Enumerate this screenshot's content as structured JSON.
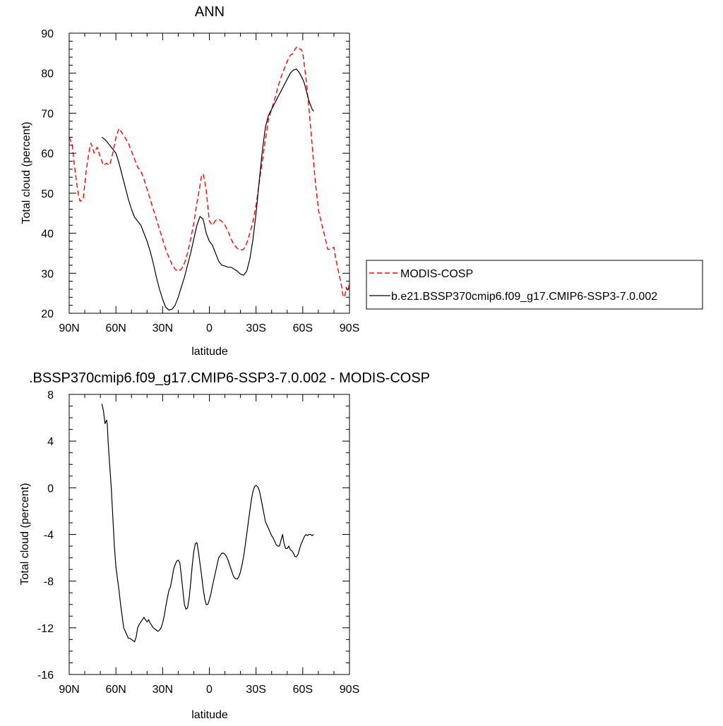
{
  "colors": {
    "model": "#000000",
    "obs": "#ff0000"
  },
  "chart_data": [
    {
      "type": "line",
      "title": "ANN",
      "xlabel": "latitude",
      "ylabel": "Total cloud (percent)",
      "xlim": [
        90,
        -90
      ],
      "ylim": [
        20,
        90
      ],
      "x_ticks": [
        90,
        60,
        30,
        0,
        -30,
        -60,
        -90
      ],
      "x_tick_labels": [
        "90N",
        "60N",
        "30N",
        "0",
        "30S",
        "60S",
        "90S"
      ],
      "y_ticks": [
        20,
        30,
        40,
        50,
        60,
        70,
        80,
        90
      ],
      "y_tick_labels": [
        "20",
        "30",
        "40",
        "50",
        "60",
        "70",
        "80",
        "90"
      ],
      "y_minor_step": 2,
      "x_minor_step": 10,
      "grid": false,
      "legend_position": "right",
      "series": [
        {
          "name": "MODIS-COSP",
          "style": "dashed",
          "color": "#ff0000",
          "x": [
            90,
            88,
            87,
            86,
            85,
            84,
            83,
            81,
            79,
            77,
            76,
            74,
            72,
            70,
            68,
            66,
            64,
            62,
            60,
            58,
            56,
            54,
            52,
            50,
            48,
            46,
            44,
            42,
            40,
            38,
            36,
            34,
            32,
            30,
            28,
            26,
            24,
            22,
            20,
            18,
            16,
            14,
            12,
            10,
            8,
            6,
            5,
            4,
            3,
            2,
            0,
            -2,
            -4,
            -6,
            -8,
            -10,
            -12,
            -14,
            -16,
            -18,
            -20,
            -22,
            -24,
            -26,
            -28,
            -30,
            -32,
            -34,
            -36,
            -38,
            -40,
            -42,
            -44,
            -46,
            -48,
            -50,
            -52,
            -54,
            -55,
            -56,
            -57,
            -58,
            -59,
            -60,
            -62,
            -64,
            -66,
            -68,
            -70,
            -72,
            -74,
            -76,
            -78,
            -80,
            -81,
            -82,
            -84,
            -85,
            -86,
            -87,
            -88,
            -89,
            -90
          ],
          "values": [
            64.0,
            62.0,
            58.0,
            55.0,
            52.0,
            49.5,
            48.0,
            48.5,
            56.0,
            61.0,
            62.5,
            60.0,
            61.5,
            59.0,
            57.0,
            57.5,
            57.0,
            60.0,
            64.0,
            66.2,
            65.0,
            63.8,
            62.5,
            60.5,
            58.5,
            56.5,
            55.5,
            53.5,
            51.0,
            48.5,
            46.0,
            43.5,
            41.0,
            38.5,
            36.0,
            34.0,
            32.2,
            31.0,
            30.5,
            31.0,
            32.5,
            35.0,
            38.5,
            42.5,
            47.5,
            52.0,
            54.5,
            54.8,
            53.0,
            50.5,
            43.0,
            42.0,
            43.2,
            43.5,
            43.0,
            42.0,
            40.5,
            38.5,
            37.0,
            36.2,
            35.8,
            36.0,
            37.5,
            40.0,
            43.0,
            47.0,
            52.5,
            58.0,
            63.5,
            68.5,
            71.0,
            73.5,
            76.5,
            79.0,
            81.0,
            83.0,
            84.5,
            85.0,
            86.0,
            86.5,
            86.5,
            86.0,
            86.0,
            85.0,
            79.0,
            71.0,
            62.0,
            53.0,
            46.0,
            42.5,
            39.5,
            36.0,
            36.0,
            36.5,
            34.0,
            32.0,
            28.5,
            26.5,
            24.0,
            24.5,
            26.5,
            25.5,
            27.5
          ]
        },
        {
          "name": "b.e21.BSSP370cmip6.f09_g17.CMIP6-SSP3-7.0.002",
          "style": "solid",
          "color": "#000000",
          "x": [
            69,
            68,
            66,
            64,
            62,
            60,
            58,
            56,
            54,
            52,
            50,
            48,
            46,
            44,
            42,
            40,
            38,
            36,
            34,
            32,
            30,
            28,
            26,
            24,
            22,
            20,
            18,
            16,
            14,
            12,
            10,
            8,
            6,
            4,
            2,
            0,
            -2,
            -4,
            -6,
            -8,
            -10,
            -12,
            -14,
            -16,
            -18,
            -20,
            -22,
            -24,
            -26,
            -28,
            -30,
            -32,
            -34,
            -36,
            -38,
            -40,
            -42,
            -44,
            -46,
            -48,
            -50,
            -52,
            -54,
            -56,
            -58,
            -60,
            -61,
            -62,
            -63,
            -64,
            -65,
            -66,
            -67
          ],
          "values": [
            64.0,
            63.7,
            63.0,
            62.0,
            61.0,
            60.0,
            57.5,
            54.5,
            51.5,
            48.5,
            46.0,
            44.0,
            43.0,
            42.0,
            40.0,
            38.0,
            35.5,
            32.5,
            29.0,
            26.0,
            23.5,
            21.5,
            20.8,
            21.0,
            22.0,
            24.0,
            26.5,
            29.0,
            32.0,
            35.0,
            38.5,
            42.0,
            44.2,
            43.5,
            40.0,
            38.0,
            37.0,
            35.0,
            33.0,
            32.0,
            31.8,
            31.5,
            31.5,
            31.0,
            30.5,
            29.8,
            29.5,
            30.5,
            33.5,
            38.5,
            45.0,
            53.0,
            60.5,
            66.5,
            69.5,
            71.0,
            72.5,
            74.0,
            75.5,
            77.0,
            78.5,
            80.0,
            80.8,
            81.0,
            80.0,
            78.5,
            77.5,
            76.0,
            74.5,
            73.0,
            72.0,
            71.0,
            70.5
          ]
        }
      ]
    },
    {
      "type": "line",
      "title": ".BSSP370cmip6.f09_g17.CMIP6-SSP3-7.0.002 - MODIS-COSP",
      "xlabel": "latitude",
      "ylabel": "Total cloud (percent)",
      "xlim": [
        90,
        -90
      ],
      "ylim": [
        -16,
        8
      ],
      "x_ticks": [
        90,
        60,
        30,
        0,
        -30,
        -60,
        -90
      ],
      "x_tick_labels": [
        "90N",
        "60N",
        "30N",
        "0",
        "30S",
        "60S",
        "90S"
      ],
      "y_ticks": [
        -16,
        -12,
        -8,
        -4,
        0,
        4,
        8
      ],
      "y_tick_labels": [
        "-16",
        "-12",
        "-8",
        "-4",
        "0",
        "4",
        "8"
      ],
      "y_minor_step": 1,
      "x_minor_step": 10,
      "grid": false,
      "series": [
        {
          "style": "solid",
          "color": "#000000",
          "x": [
            69,
            68,
            67,
            66,
            65.5,
            65,
            64,
            63,
            62,
            61,
            60,
            59,
            58,
            57,
            56,
            55,
            54,
            53,
            52,
            51,
            50,
            49,
            48,
            47,
            46,
            45,
            44,
            43,
            42,
            41,
            40,
            39,
            38,
            37,
            36,
            35,
            34,
            33,
            32,
            31,
            30,
            29,
            28,
            27,
            26,
            25,
            24,
            23,
            22,
            21,
            20,
            19,
            18,
            17,
            16,
            15,
            14,
            13,
            12,
            11,
            10,
            9,
            8,
            7,
            6,
            5,
            4,
            3,
            2,
            1,
            0,
            -1,
            -2,
            -3,
            -4,
            -5,
            -6,
            -7,
            -8,
            -9,
            -10,
            -11,
            -12,
            -13,
            -14,
            -15,
            -16,
            -17,
            -18,
            -19,
            -20,
            -21,
            -22,
            -23,
            -24,
            -25,
            -26,
            -27,
            -28,
            -29,
            -30,
            -31,
            -32,
            -33,
            -34,
            -35,
            -36,
            -37,
            -38,
            -39,
            -40,
            -41,
            -42,
            -43,
            -44,
            -45,
            -46,
            -47,
            -48,
            -49,
            -50,
            -51,
            -52,
            -53,
            -54,
            -55,
            -56,
            -57,
            -58,
            -59,
            -60,
            -61,
            -62,
            -63,
            -64,
            -65,
            -66,
            -67
          ],
          "values": [
            7.2,
            6.6,
            5.5,
            5.8,
            5.4,
            4.0,
            2.0,
            0.0,
            -2.5,
            -5.0,
            -6.8,
            -7.8,
            -8.8,
            -10.0,
            -11.0,
            -12.0,
            -12.3,
            -12.6,
            -12.9,
            -12.9,
            -13.0,
            -13.1,
            -13.2,
            -12.8,
            -12.0,
            -11.7,
            -11.5,
            -11.3,
            -11.1,
            -11.3,
            -11.5,
            -11.3,
            -11.6,
            -11.8,
            -12.0,
            -12.1,
            -12.2,
            -12.3,
            -12.2,
            -12.0,
            -11.6,
            -11.0,
            -10.2,
            -9.5,
            -8.8,
            -8.5,
            -7.8,
            -7.0,
            -6.6,
            -6.3,
            -6.2,
            -6.4,
            -7.5,
            -8.8,
            -10.0,
            -10.4,
            -10.3,
            -9.5,
            -8.2,
            -6.7,
            -5.5,
            -4.8,
            -4.7,
            -5.5,
            -6.5,
            -7.5,
            -8.6,
            -9.5,
            -10.0,
            -10.0,
            -9.6,
            -9.1,
            -8.4,
            -7.8,
            -7.2,
            -6.6,
            -6.0,
            -5.8,
            -5.6,
            -5.6,
            -5.7,
            -5.9,
            -6.2,
            -6.6,
            -7.0,
            -7.4,
            -7.7,
            -7.8,
            -7.8,
            -7.6,
            -7.2,
            -6.6,
            -5.9,
            -5.0,
            -4.0,
            -3.0,
            -2.0,
            -1.0,
            -0.3,
            0.1,
            0.2,
            0.1,
            -0.2,
            -0.8,
            -1.5,
            -2.2,
            -2.9,
            -3.2,
            -3.5,
            -3.8,
            -4.1,
            -4.3,
            -4.6,
            -4.9,
            -5.0,
            -5.0,
            -4.5,
            -4.0,
            -4.8,
            -5.2,
            -5.2,
            -5.0,
            -5.3,
            -5.4,
            -5.6,
            -5.9,
            -5.9,
            -5.7,
            -5.2,
            -4.8,
            -4.5,
            -4.2,
            -4.0,
            -4.1,
            -4.0,
            -4.0,
            -4.1,
            -4.0
          ]
        }
      ]
    }
  ]
}
